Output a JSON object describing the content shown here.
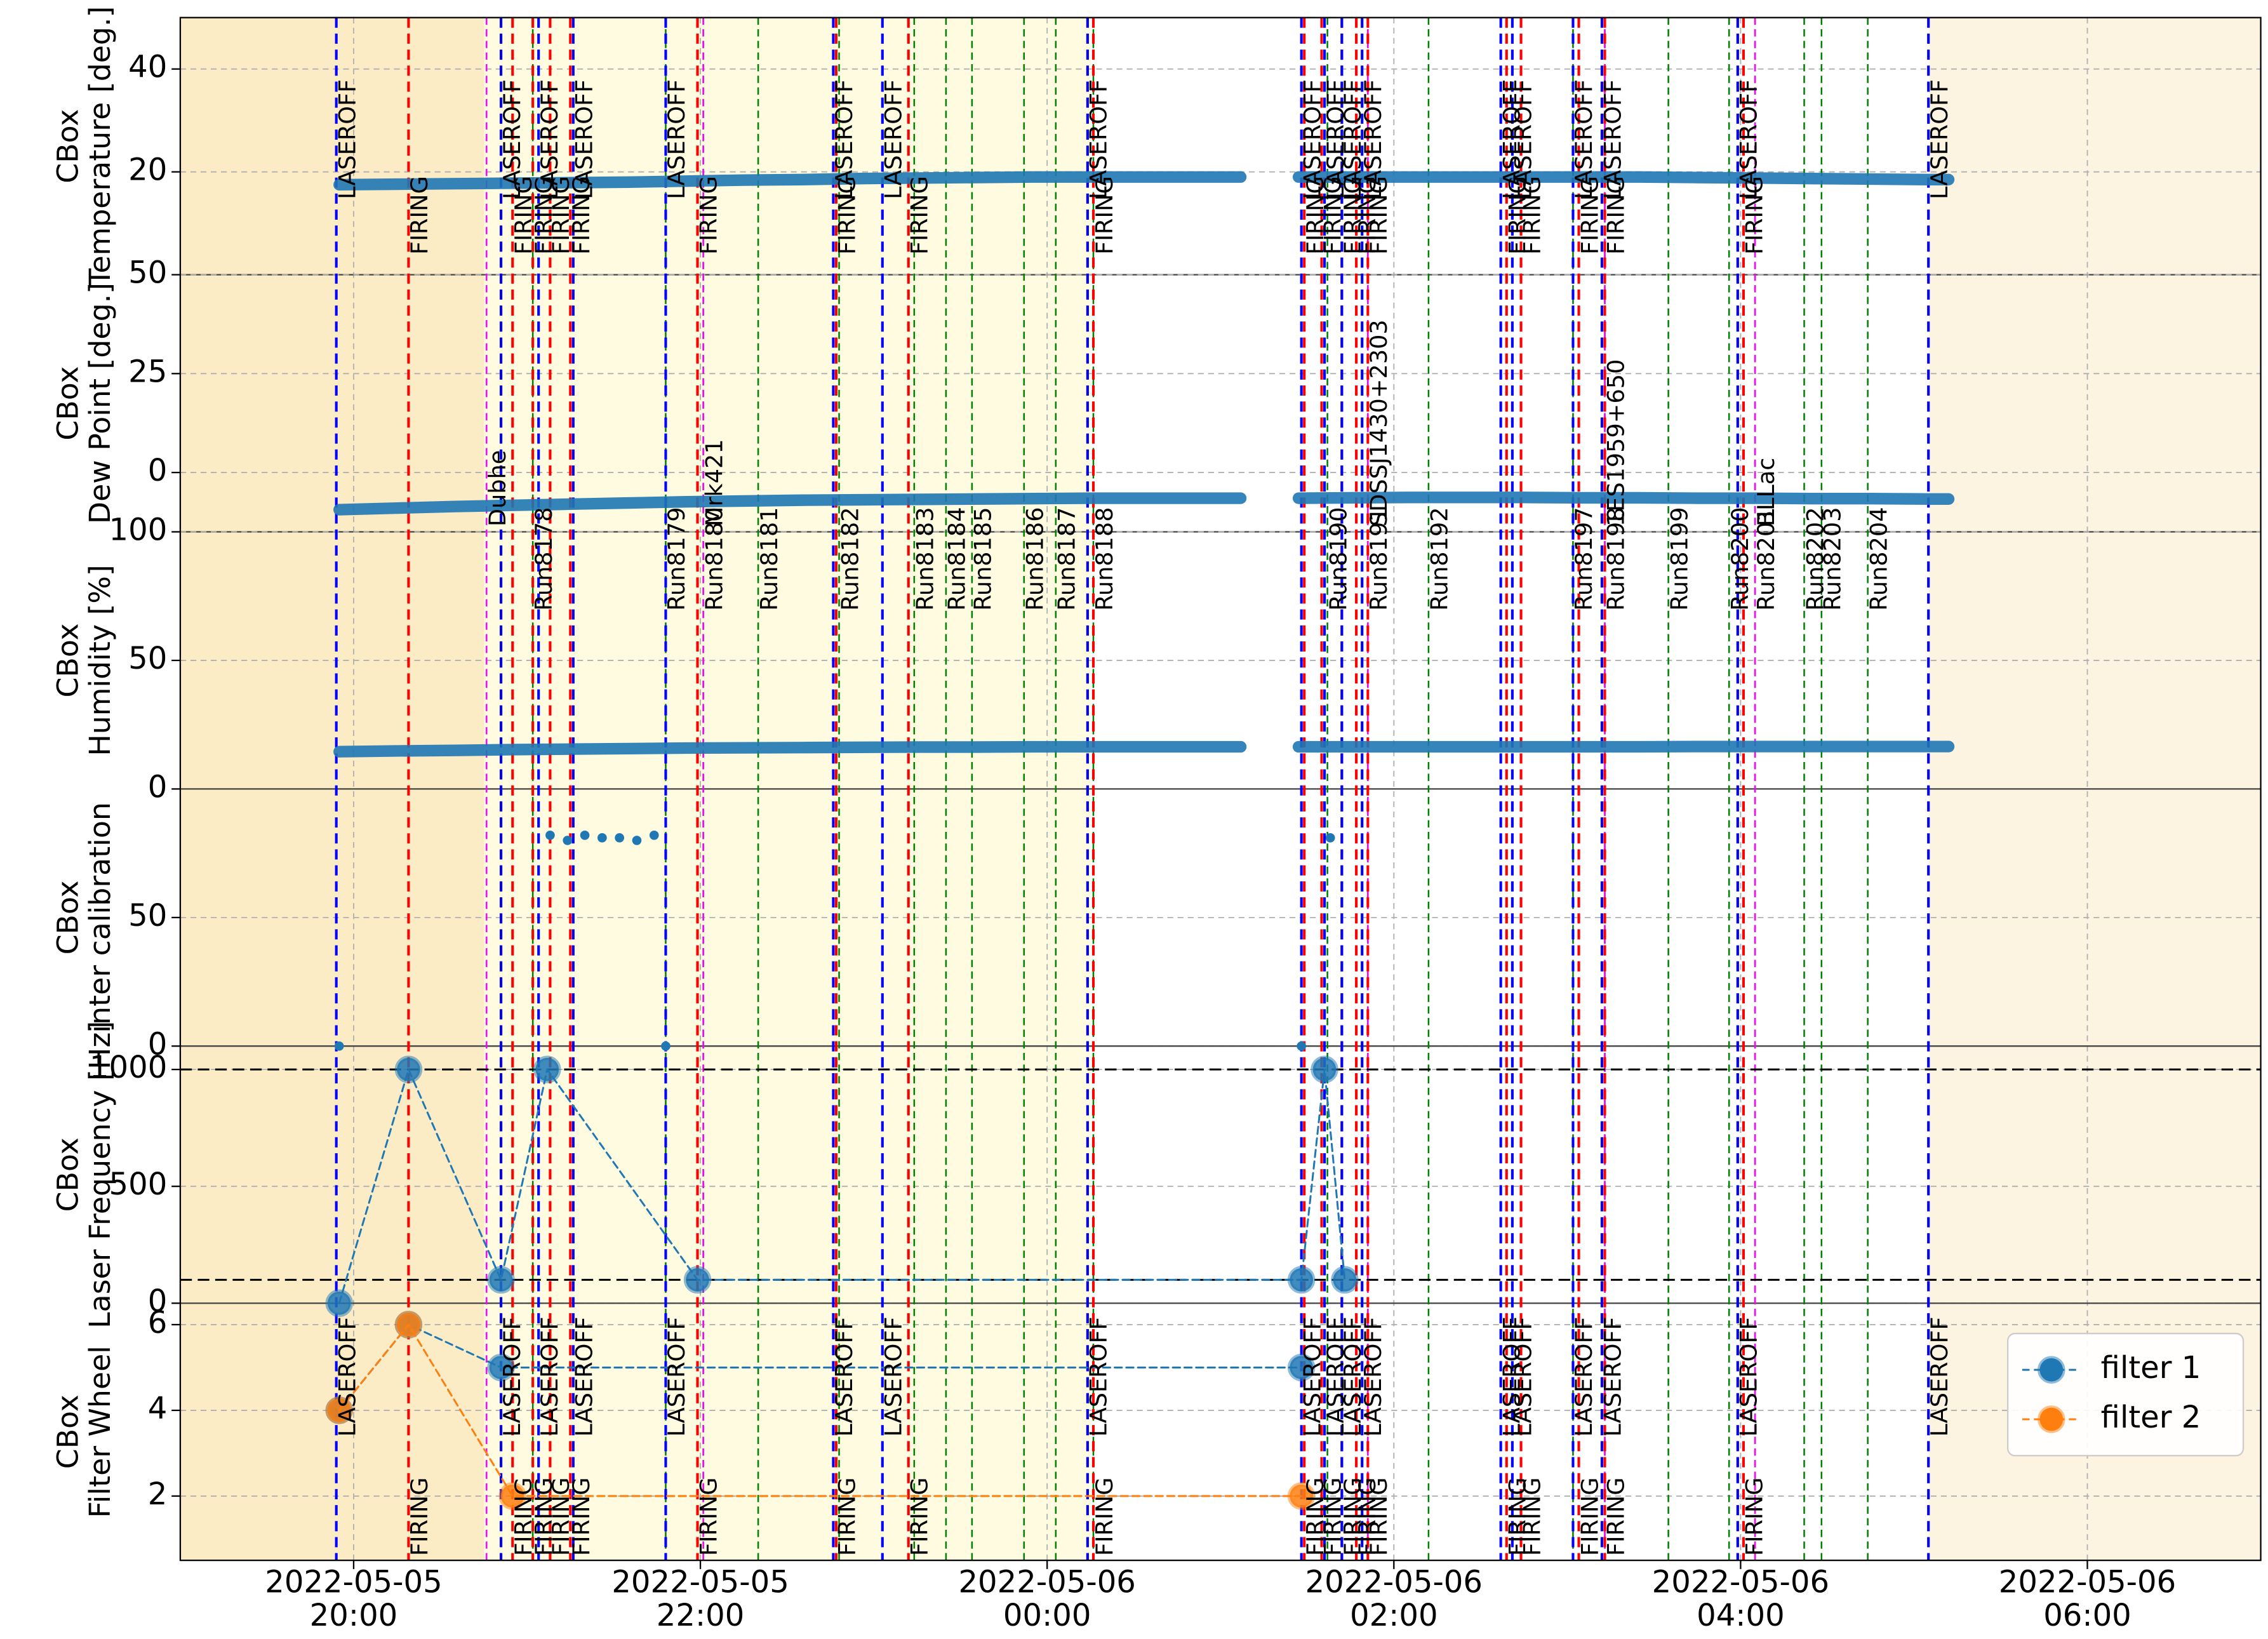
{
  "chart_data": [
    {
      "type": "line",
      "ylabel": [
        "CBox",
        "Temperature [deg.]"
      ],
      "ylim": [
        0,
        50
      ],
      "yticks": [
        20,
        40
      ],
      "color": "#1f77b4",
      "x": [
        "2022-05-05 19:55",
        "2022-05-05 20:15",
        "2022-05-05 20:35",
        "2022-05-05 20:55",
        "2022-05-05 21:15",
        "2022-05-05 21:35",
        "2022-05-05 21:55",
        "2022-05-05 22:15",
        "2022-05-05 22:35",
        "2022-05-05 22:55",
        "2022-05-05 23:15",
        "2022-05-05 23:35",
        "2022-05-05 23:55",
        "2022-05-06 00:15",
        "2022-05-06 00:35",
        "2022-05-06 00:55",
        "2022-05-06 01:07",
        "2022-05-06 01:17",
        "2022-05-06 01:27",
        "2022-05-06 01:45",
        "2022-05-06 02:05",
        "2022-05-06 02:25",
        "2022-05-06 02:45",
        "2022-05-06 03:05",
        "2022-05-06 03:25",
        "2022-05-06 03:45",
        "2022-05-06 04:05",
        "2022-05-06 04:25",
        "2022-05-06 04:45",
        "2022-05-06 05:05",
        "2022-05-06 05:12"
      ],
      "values": [
        17.5,
        17.6,
        17.7,
        17.8,
        17.9,
        18.0,
        18.2,
        18.4,
        18.5,
        18.7,
        18.8,
        18.9,
        19.0,
        19.0,
        19.0,
        19.0,
        19.0,
        null,
        19.0,
        19.0,
        19.0,
        19.0,
        19.0,
        19.0,
        19.0,
        18.9,
        18.8,
        18.7,
        18.6,
        18.5,
        18.5
      ]
    },
    {
      "type": "line",
      "ylabel": [
        "CBox",
        "Dew Point [deg.]"
      ],
      "ylim": [
        -15,
        50
      ],
      "yticks": [
        0,
        25,
        50
      ],
      "color": "#1f77b4",
      "x": [
        "2022-05-05 19:55",
        "2022-05-05 20:15",
        "2022-05-05 20:35",
        "2022-05-05 20:55",
        "2022-05-05 21:15",
        "2022-05-05 21:35",
        "2022-05-05 21:55",
        "2022-05-05 22:15",
        "2022-05-05 22:35",
        "2022-05-05 22:55",
        "2022-05-05 23:15",
        "2022-05-05 23:35",
        "2022-05-05 23:55",
        "2022-05-06 00:15",
        "2022-05-06 00:35",
        "2022-05-06 00:55",
        "2022-05-06 01:07",
        "2022-05-06 01:17",
        "2022-05-06 01:27",
        "2022-05-06 01:45",
        "2022-05-06 02:05",
        "2022-05-06 02:25",
        "2022-05-06 02:45",
        "2022-05-06 03:05",
        "2022-05-06 03:25",
        "2022-05-06 03:45",
        "2022-05-06 04:05",
        "2022-05-06 04:25",
        "2022-05-06 04:45",
        "2022-05-06 05:05",
        "2022-05-06 05:12"
      ],
      "values": [
        -9.4,
        -9.0,
        -8.6,
        -8.3,
        -8.0,
        -7.7,
        -7.4,
        -7.2,
        -7.0,
        -6.9,
        -6.8,
        -6.7,
        -6.6,
        -6.5,
        -6.5,
        -6.5,
        -6.5,
        null,
        -6.5,
        -6.4,
        -6.3,
        -6.3,
        -6.3,
        -6.4,
        -6.4,
        -6.5,
        -6.5,
        -6.6,
        -6.6,
        -6.7,
        -6.7
      ]
    },
    {
      "type": "line",
      "ylabel": [
        "CBox",
        "Humidity [%]"
      ],
      "ylim": [
        0,
        100
      ],
      "yticks": [
        0,
        50,
        100
      ],
      "color": "#1f77b4",
      "x": [
        "2022-05-05 19:55",
        "2022-05-05 20:15",
        "2022-05-05 20:35",
        "2022-05-05 20:55",
        "2022-05-05 21:15",
        "2022-05-05 21:35",
        "2022-05-05 21:55",
        "2022-05-05 22:15",
        "2022-05-05 22:35",
        "2022-05-05 22:55",
        "2022-05-05 23:15",
        "2022-05-05 23:35",
        "2022-05-05 23:55",
        "2022-05-06 00:15",
        "2022-05-06 00:35",
        "2022-05-06 00:55",
        "2022-05-06 01:07",
        "2022-05-06 01:17",
        "2022-05-06 01:27",
        "2022-05-06 01:45",
        "2022-05-06 02:05",
        "2022-05-06 02:25",
        "2022-05-06 02:45",
        "2022-05-06 03:05",
        "2022-05-06 03:25",
        "2022-05-06 03:45",
        "2022-05-06 04:05",
        "2022-05-06 04:25",
        "2022-05-06 04:45",
        "2022-05-06 05:05",
        "2022-05-06 05:12"
      ],
      "values": [
        14.5,
        14.8,
        15.0,
        15.3,
        15.5,
        15.7,
        15.9,
        16.0,
        16.1,
        16.2,
        16.3,
        16.3,
        16.4,
        16.4,
        16.4,
        16.4,
        16.4,
        null,
        16.4,
        16.4,
        16.4,
        16.4,
        16.4,
        16.4,
        16.4,
        16.5,
        16.5,
        16.5,
        16.5,
        16.5,
        16.5
      ]
    },
    {
      "type": "scatter",
      "ylabel": [
        "CBox",
        "inter calibration"
      ],
      "ylim": [
        0,
        100
      ],
      "yticks": [
        0,
        50
      ],
      "color": "#1f77b4",
      "x": [
        "2022-05-05 19:55",
        "2022-05-05 21:08",
        "2022-05-05 21:14",
        "2022-05-05 21:20",
        "2022-05-05 21:26",
        "2022-05-05 21:32",
        "2022-05-05 21:38",
        "2022-05-05 21:44",
        "2022-05-05 21:48",
        "2022-05-06 01:28",
        "2022-05-06 01:38"
      ],
      "values": [
        0,
        82,
        80,
        82,
        81,
        81,
        80,
        82,
        0,
        0,
        81
      ]
    },
    {
      "type": "line",
      "ylabel": [
        "CBox",
        "Laser Frequency [Hz]"
      ],
      "ylim": [
        0,
        1100
      ],
      "yticks": [
        0,
        500,
        1000
      ],
      "color": "#1f77b4",
      "markers": true,
      "linestyle": "dashed",
      "hlines": [
        1000,
        100
      ],
      "hline_color": "#000000",
      "x": [
        "2022-05-05 19:55",
        "2022-05-05 20:19",
        "2022-05-05 20:51",
        "2022-05-05 21:07",
        "2022-05-05 21:59",
        "2022-05-06 01:28",
        "2022-05-06 01:36",
        "2022-05-06 01:43"
      ],
      "values": [
        0,
        1000,
        100,
        1000,
        100,
        100,
        1000,
        100
      ]
    },
    {
      "type": "line",
      "ylabel": [
        "CBox",
        "Filter Wheel"
      ],
      "ylim": [
        0.5,
        6.5
      ],
      "yticks": [
        2,
        4,
        6
      ],
      "markers": true,
      "linestyle": "dashed",
      "legend": "lower right",
      "xlim": [
        "2022-05-05 19:00",
        "2022-05-06 07:00"
      ],
      "xticks": [
        {
          "value": "2022-05-05 20:00",
          "label": "2022-05-05\n20:00"
        },
        {
          "value": "2022-05-05 22:00",
          "label": "2022-05-05\n22:00"
        },
        {
          "value": "2022-05-06 00:00",
          "label": "2022-05-06\n00:00"
        },
        {
          "value": "2022-05-06 02:00",
          "label": "2022-05-06\n02:00"
        },
        {
          "value": "2022-05-06 04:00",
          "label": "2022-05-06\n04:00"
        },
        {
          "value": "2022-05-06 06:00",
          "label": "2022-05-06\n06:00"
        }
      ],
      "grid": true,
      "series": [
        {
          "name": "filter 1",
          "color": "#1f77b4",
          "x": [
            "2022-05-05 19:55",
            "2022-05-05 20:19",
            "2022-05-05 20:51",
            "2022-05-06 01:28"
          ],
          "values": [
            4,
            6,
            5,
            5
          ]
        },
        {
          "name": "filter 2",
          "color": "#ff7f0e",
          "x": [
            "2022-05-05 19:55",
            "2022-05-05 20:19",
            "2022-05-05 20:55",
            "2022-05-06 01:28"
          ],
          "values": [
            4,
            6,
            2,
            2
          ]
        }
      ]
    }
  ],
  "events": {
    "laser_off": {
      "label": "LASEROFF",
      "color": "#0000ff",
      "x": [
        "2022-05-05 19:54",
        "2022-05-05 20:51",
        "2022-05-05 21:04",
        "2022-05-05 21:16",
        "2022-05-05 21:48",
        "2022-05-05 22:46",
        "2022-05-05 23:03",
        "2022-05-06 00:14",
        "2022-05-06 01:28",
        "2022-05-06 01:36",
        "2022-05-06 01:42",
        "2022-05-06 01:49",
        "2022-05-06 02:37",
        "2022-05-06 02:41",
        "2022-05-06 03:02",
        "2022-05-06 03:12",
        "2022-05-06 03:59",
        "2022-05-06 05:05"
      ]
    },
    "firing": {
      "label": "FIRING",
      "color": "#ff0000",
      "x": [
        "2022-05-05 20:19",
        "2022-05-05 20:55",
        "2022-05-05 21:02",
        "2022-05-05 21:08",
        "2022-05-05 21:15",
        "2022-05-05 21:59",
        "2022-05-05 22:47",
        "2022-05-05 23:12",
        "2022-05-06 00:16",
        "2022-05-06 01:29",
        "2022-05-06 01:35",
        "2022-05-06 01:42",
        "2022-05-06 01:47",
        "2022-05-06 01:51",
        "2022-05-06 02:39",
        "2022-05-06 02:44",
        "2022-05-06 03:04",
        "2022-05-06 03:13",
        "2022-05-06 04:01"
      ]
    },
    "runs": {
      "color": "#008000",
      "label_color": "#ff0000",
      "x": [
        "2022-05-05 21:02",
        "2022-05-05 21:48",
        "2022-05-05 22:01",
        "2022-05-05 22:20",
        "2022-05-05 22:48",
        "2022-05-05 23:14",
        "2022-05-05 23:25",
        "2022-05-05 23:34",
        "2022-05-05 23:52",
        "2022-05-06 00:03",
        "2022-05-06 00:16",
        "2022-05-06 01:37",
        "2022-05-06 01:51",
        "2022-05-06 02:12",
        "2022-05-06 03:02",
        "2022-05-06 03:13",
        "2022-05-06 03:35",
        "2022-05-06 03:56",
        "2022-05-06 04:05",
        "2022-05-06 04:22",
        "2022-05-06 04:28",
        "2022-05-06 04:44"
      ],
      "labels": [
        "Run8178",
        "Run8179",
        "Run8180",
        "Run8181",
        "Run8182",
        "Run8183",
        "Run8184",
        "Run8185",
        "Run8186",
        "Run8187",
        "Run8188",
        "Run8190",
        "Run8191",
        "Run8192",
        "Run8197",
        "Run8198",
        "Run8199",
        "Run8200",
        "Run8201",
        "Run8202",
        "Run8203",
        "Run8204"
      ]
    },
    "sources": {
      "color": "#ff00ff",
      "label_color": "#ff0000",
      "x": [
        "2022-05-05 20:46",
        "2022-05-05 22:01",
        "2022-05-06 01:51",
        "2022-05-06 03:13",
        "2022-05-06 04:05"
      ],
      "labels": [
        "Dubhe",
        "Mrk421",
        "SDSSJ1430+2303",
        "1ES1959+650",
        "BLLac"
      ]
    }
  }
}
